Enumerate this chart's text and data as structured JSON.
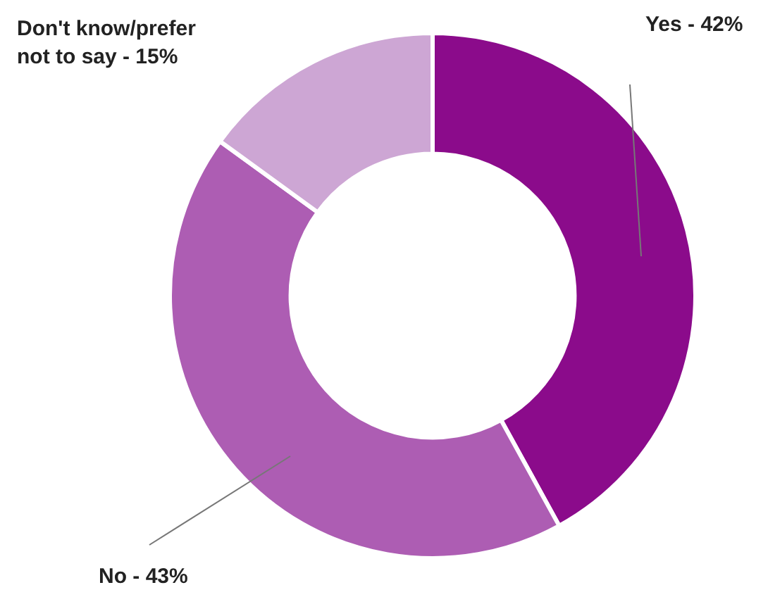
{
  "chart_data": {
    "type": "donut",
    "categories": [
      "Yes",
      "No",
      "Don't know/prefer not to say"
    ],
    "values": [
      42,
      43,
      15
    ],
    "value_labels": [
      "42%",
      "43%",
      "15%"
    ],
    "colors": [
      "#8b0b8b",
      "#ad5db3",
      "#cda6d4"
    ],
    "legend": false
  }
}
